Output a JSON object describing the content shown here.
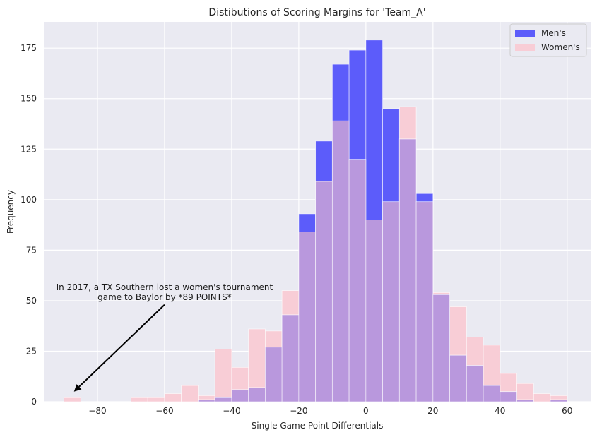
{
  "chart_data": {
    "type": "bar",
    "title": "Distibutions of Scoring Margins for 'Team_A'",
    "xlabel": "Single Game Point Differentials",
    "ylabel": "Frequency",
    "xlim": [
      -96,
      67
    ],
    "ylim": [
      0,
      188
    ],
    "xticks": [
      -80,
      -60,
      -40,
      -20,
      0,
      20,
      40,
      60
    ],
    "yticks": [
      0,
      25,
      50,
      75,
      100,
      125,
      150,
      175
    ],
    "grid": true,
    "legend_position": "top-right",
    "bin_width": 5,
    "series": [
      {
        "name": "Men's",
        "color": "#5c5cfa",
        "bins": [
          {
            "start": -50,
            "value": 1
          },
          {
            "start": -45,
            "value": 2
          },
          {
            "start": -40,
            "value": 6
          },
          {
            "start": -35,
            "value": 7
          },
          {
            "start": -30,
            "value": 27
          },
          {
            "start": -25,
            "value": 43
          },
          {
            "start": -20,
            "value": 93
          },
          {
            "start": -15,
            "value": 129
          },
          {
            "start": -10,
            "value": 167
          },
          {
            "start": -5,
            "value": 174
          },
          {
            "start": 0,
            "value": 179
          },
          {
            "start": 5,
            "value": 145
          },
          {
            "start": 10,
            "value": 130
          },
          {
            "start": 15,
            "value": 103
          },
          {
            "start": 20,
            "value": 53
          },
          {
            "start": 25,
            "value": 23
          },
          {
            "start": 30,
            "value": 18
          },
          {
            "start": 35,
            "value": 8
          },
          {
            "start": 40,
            "value": 5
          },
          {
            "start": 45,
            "value": 1
          },
          {
            "start": 55,
            "value": 1
          }
        ]
      },
      {
        "name": "Women's",
        "color": "#f8cdd6",
        "bins": [
          {
            "start": -90,
            "value": 2
          },
          {
            "start": -70,
            "value": 2
          },
          {
            "start": -65,
            "value": 2
          },
          {
            "start": -60,
            "value": 4
          },
          {
            "start": -55,
            "value": 8
          },
          {
            "start": -50,
            "value": 3
          },
          {
            "start": -45,
            "value": 26
          },
          {
            "start": -40,
            "value": 17
          },
          {
            "start": -35,
            "value": 36
          },
          {
            "start": -30,
            "value": 35
          },
          {
            "start": -25,
            "value": 55
          },
          {
            "start": -20,
            "value": 84
          },
          {
            "start": -15,
            "value": 109
          },
          {
            "start": -10,
            "value": 139
          },
          {
            "start": -5,
            "value": 120
          },
          {
            "start": 0,
            "value": 90
          },
          {
            "start": 5,
            "value": 99
          },
          {
            "start": 10,
            "value": 146
          },
          {
            "start": 15,
            "value": 99
          },
          {
            "start": 20,
            "value": 54
          },
          {
            "start": 25,
            "value": 47
          },
          {
            "start": 30,
            "value": 32
          },
          {
            "start": 35,
            "value": 28
          },
          {
            "start": 40,
            "value": 14
          },
          {
            "start": 45,
            "value": 9
          },
          {
            "start": 50,
            "value": 4
          },
          {
            "start": 55,
            "value": 3
          }
        ]
      }
    ],
    "overlap_color": "#b998dd",
    "annotation": {
      "lines": [
        "In 2017, a TX Southern lost a women's tournament",
        "game to Baylor by *89 POINTS*"
      ],
      "text_at": [
        -60,
        52
      ],
      "arrow_from": [
        -60,
        48
      ],
      "arrow_to": [
        -87,
        5
      ]
    }
  }
}
